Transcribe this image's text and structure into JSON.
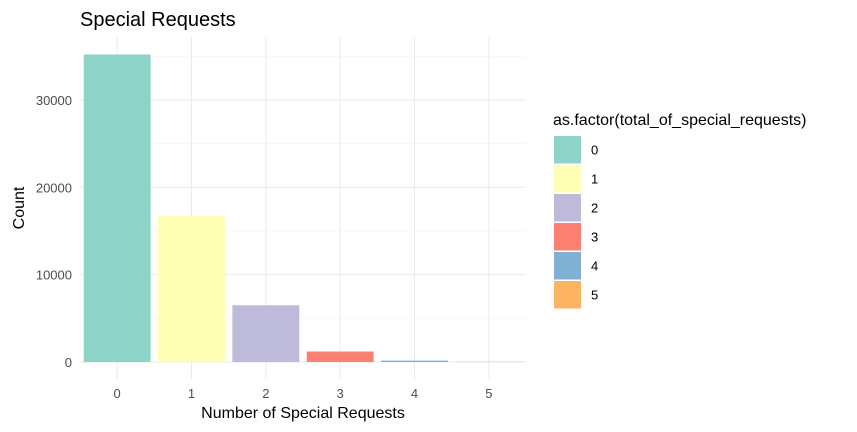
{
  "chart_data": {
    "type": "bar",
    "title": "Special Requests",
    "xlabel": "Number of Special Requests",
    "ylabel": "Count",
    "categories": [
      "0",
      "1",
      "2",
      "3",
      "4",
      "5"
    ],
    "values": [
      35200,
      16700,
      6500,
      1200,
      160,
      40
    ],
    "ylim": [
      0,
      36000
    ],
    "yticks": [
      0,
      10000,
      20000,
      30000
    ],
    "grid": true,
    "colors": [
      "#8DD3C7",
      "#FFFFB3",
      "#BEBADA",
      "#FB8072",
      "#80B1D3",
      "#FDB462"
    ],
    "legend": {
      "title": "as.factor(total_of_special_requests)",
      "placement": "right",
      "labels": [
        "0",
        "1",
        "2",
        "3",
        "4",
        "5"
      ]
    }
  }
}
